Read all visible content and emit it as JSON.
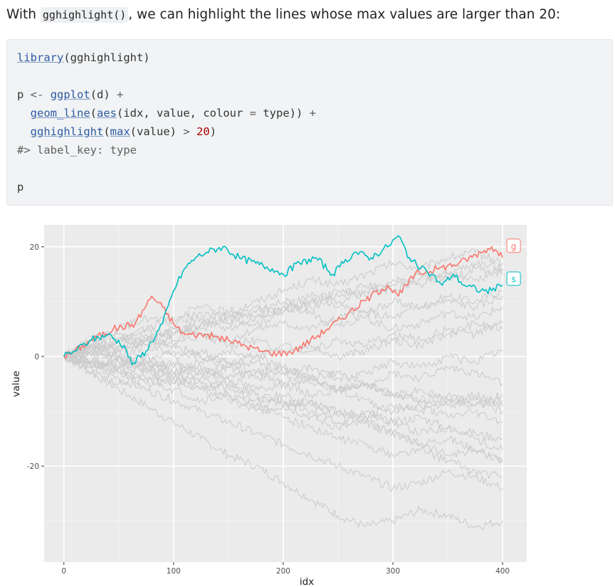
{
  "intro": {
    "prefix": "With ",
    "code": "gghighlight()",
    "suffix": ", we can highlight the lines whose max values are larger than 20:"
  },
  "code_block": {
    "l1_fn": "library",
    "l1_rest": "(gghighlight)",
    "l3_pre": "p ",
    "l3_op": "<-",
    "l3_sp": " ",
    "l3_fn": "ggplot",
    "l3_rest": "(d) ",
    "l3_plus": "+",
    "l4_indent": "  ",
    "l4_fn1": "geom_line",
    "l4_p1": "(",
    "l4_fn2": "aes",
    "l4_p2": "(idx, value, colour ",
    "l4_eq": "=",
    "l4_p3": " type)) ",
    "l4_plus": "+",
    "l5_indent": "  ",
    "l5_fn1": "gghighlight",
    "l5_p1": "(",
    "l5_fn2": "max",
    "l5_p2": "(value) ",
    "l5_gt": ">",
    "l5_sp": " ",
    "l5_num": "20",
    "l5_p3": ")",
    "l6_comment": "#> label_key: type",
    "l8": "p"
  },
  "chart_data": {
    "type": "line",
    "xlabel": "idx",
    "ylabel": "value",
    "xlim": [
      -18,
      422
    ],
    "ylim": [
      -37.5,
      24
    ],
    "x_ticks": [
      0,
      100,
      200,
      300,
      400
    ],
    "y_ticks": [
      -20,
      0,
      20
    ],
    "grid": true,
    "background": "#ebebeb",
    "highlight_rule": "max(value) > 20",
    "highlighted_series": [
      {
        "name": "g",
        "color": "#f8766d",
        "x": [
          0,
          10,
          25,
          45,
          65,
          80,
          90,
          100,
          110,
          130,
          150,
          165,
          180,
          195,
          210,
          225,
          240,
          260,
          280,
          295,
          305,
          320,
          340,
          360,
          380,
          390,
          400
        ],
        "y": [
          0,
          1,
          3,
          5,
          6,
          11,
          9,
          6,
          4,
          4,
          3,
          2,
          1,
          0.5,
          1,
          3,
          5,
          8,
          11,
          13,
          11,
          15,
          16,
          17,
          19,
          20,
          18
        ]
      },
      {
        "name": "s",
        "color": "#00bfc4",
        "x": [
          0,
          10,
          25,
          40,
          55,
          62,
          75,
          90,
          100,
          110,
          120,
          130,
          145,
          160,
          175,
          190,
          200,
          215,
          230,
          245,
          255,
          265,
          280,
          295,
          305,
          315,
          325,
          335,
          345,
          355,
          365,
          380,
          390,
          400
        ],
        "y": [
          0,
          1,
          3,
          4,
          2,
          -1.5,
          1,
          6,
          12,
          16,
          18,
          19,
          20,
          18,
          17,
          16,
          15,
          17,
          18,
          15,
          17,
          19,
          18,
          20,
          22,
          18,
          16,
          15,
          13,
          15,
          13,
          12,
          12,
          13
        ]
      }
    ],
    "background_series_color": "#cccccc",
    "background_series": [
      {
        "y": [
          0,
          -1,
          -3,
          -2,
          -4,
          -6,
          -5,
          -7,
          -9,
          -8,
          -10,
          -11,
          -12,
          -11,
          -13,
          -14,
          -15
        ]
      },
      {
        "y": [
          0,
          1,
          0,
          -2,
          -1,
          -3,
          -2,
          -4,
          -3,
          -5,
          -6,
          -5,
          -7,
          -8,
          -7,
          -9,
          -8
        ]
      },
      {
        "y": [
          0,
          2,
          1,
          3,
          2,
          4,
          3,
          5,
          6,
          5,
          7,
          8,
          7,
          9,
          10,
          9,
          11
        ]
      },
      {
        "y": [
          0,
          -2,
          -4,
          -6,
          -8,
          -10,
          -12,
          -14,
          -16,
          -18,
          -20,
          -22,
          -24,
          -23,
          -21,
          -22,
          -24
        ]
      },
      {
        "y": [
          0,
          -3,
          -6,
          -9,
          -12,
          -15,
          -18,
          -20,
          -23,
          -26,
          -29,
          -31,
          -30,
          -28,
          -29,
          -31,
          -30
        ]
      },
      {
        "y": [
          0,
          -1,
          -2,
          -1,
          -3,
          -2,
          -4,
          -3,
          -5,
          -4,
          -6,
          -5,
          -7,
          -8,
          -9,
          -8,
          -10
        ]
      },
      {
        "y": [
          0,
          2,
          4,
          3,
          5,
          7,
          6,
          8,
          10,
          9,
          11,
          13,
          12,
          14,
          15,
          14,
          16
        ]
      },
      {
        "y": [
          0,
          1,
          3,
          2,
          0,
          1,
          -1,
          0,
          2,
          1,
          3,
          2,
          4,
          3,
          5,
          4,
          6
        ]
      },
      {
        "y": [
          0,
          -2,
          -1,
          -3,
          -5,
          -4,
          -6,
          -8,
          -7,
          -9,
          -11,
          -10,
          -12,
          -14,
          -13,
          -15,
          -17
        ]
      },
      {
        "y": [
          0,
          1,
          -1,
          0,
          -2,
          -1,
          1,
          0,
          -2,
          -4,
          -3,
          -5,
          -7,
          -6,
          -8,
          -7,
          -9
        ]
      },
      {
        "y": [
          0,
          2,
          1,
          3,
          5,
          4,
          2,
          3,
          1,
          2,
          0,
          1,
          3,
          2,
          4,
          6,
          5
        ]
      },
      {
        "y": [
          0,
          -1,
          -3,
          -5,
          -4,
          -6,
          -8,
          -10,
          -9,
          -11,
          -13,
          -12,
          -14,
          -16,
          -15,
          -17,
          -19
        ]
      },
      {
        "y": [
          0,
          3,
          5,
          7,
          6,
          8,
          7,
          9,
          8,
          10,
          12,
          11,
          13,
          15,
          14,
          16,
          15
        ]
      },
      {
        "y": [
          0,
          -2,
          0,
          -1,
          1,
          0,
          -2,
          -1,
          -3,
          -2,
          -4,
          -3,
          -1,
          -2,
          0,
          -1,
          1
        ]
      },
      {
        "y": [
          0,
          1,
          2,
          4,
          3,
          5,
          7,
          6,
          8,
          10,
          9,
          8,
          10,
          9,
          11,
          10,
          12
        ]
      },
      {
        "y": [
          0,
          -1,
          -2,
          -4,
          -3,
          -5,
          -7,
          -9,
          -11,
          -13,
          -15,
          -16,
          -18,
          -17,
          -19,
          -21,
          -22
        ]
      },
      {
        "y": [
          0,
          0,
          -2,
          -1,
          -3,
          -2,
          -4,
          -6,
          -5,
          -7,
          -6,
          -8,
          -10,
          -9,
          -11,
          -10,
          -12
        ]
      },
      {
        "y": [
          0,
          2,
          3,
          5,
          4,
          6,
          8,
          7,
          9,
          8,
          6,
          7,
          5,
          6,
          8,
          7,
          9
        ]
      },
      {
        "y": [
          0,
          -3,
          -5,
          -4,
          -6,
          -8,
          -7,
          -9,
          -8,
          -10,
          -12,
          -11,
          -9,
          -10,
          -8,
          -9,
          -7
        ]
      },
      {
        "y": [
          0,
          1,
          0,
          2,
          4,
          6,
          5,
          7,
          9,
          11,
          10,
          12,
          14,
          13,
          15,
          17,
          16
        ]
      },
      {
        "y": [
          0,
          -1,
          1,
          3,
          2,
          0,
          -1,
          -3,
          -2,
          -4,
          -6,
          -5,
          -3,
          -4,
          -2,
          -3,
          -5
        ]
      },
      {
        "y": [
          0,
          2,
          0,
          -2,
          -4,
          -3,
          -5,
          -7,
          -9,
          -8,
          -10,
          -12,
          -14,
          -16,
          -18,
          -17,
          -19
        ]
      },
      {
        "y": [
          0,
          1,
          3,
          5,
          7,
          9,
          8,
          10,
          12,
          14,
          13,
          15,
          17,
          16,
          18,
          19,
          17
        ]
      }
    ]
  }
}
